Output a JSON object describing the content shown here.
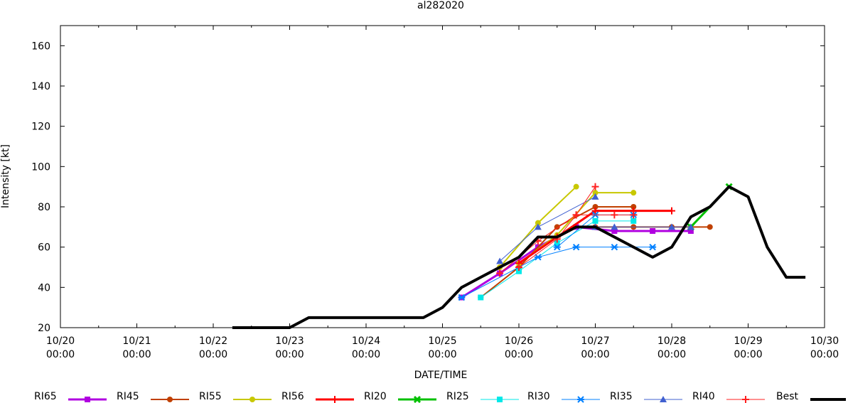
{
  "chart_data": {
    "type": "line",
    "title": "al282020",
    "xlabel": "DATE/TIME",
    "ylabel": "Intensity [kt]",
    "xlim": [
      "10/20 00:00",
      "10/30 00:00"
    ],
    "ylim": [
      20,
      170
    ],
    "y_ticks": [
      20,
      40,
      60,
      80,
      100,
      120,
      140,
      160
    ],
    "x_ticks": [
      {
        "date": "10/20",
        "time": "00:00"
      },
      {
        "date": "10/21",
        "time": "00:00"
      },
      {
        "date": "10/22",
        "time": "00:00"
      },
      {
        "date": "10/23",
        "time": "00:00"
      },
      {
        "date": "10/24",
        "time": "00:00"
      },
      {
        "date": "10/25",
        "time": "00:00"
      },
      {
        "date": "10/26",
        "time": "00:00"
      },
      {
        "date": "10/27",
        "time": "00:00"
      },
      {
        "date": "10/28",
        "time": "00:00"
      },
      {
        "date": "10/29",
        "time": "00:00"
      },
      {
        "date": "10/30",
        "time": "00:00"
      }
    ],
    "grid": false,
    "legend_position": "bottom",
    "series": [
      {
        "name": "RI65",
        "color": "#b000e0",
        "marker": "square",
        "width": 3,
        "tracks": [
          {
            "x": [
              "10/25 06:00",
              "10/25 18:00",
              "10/26 06:00",
              "10/26 18:00",
              "10/27 06:00",
              "10/27 18:00",
              "10/28 06:00"
            ],
            "y": [
              35,
              47,
              60,
              70,
              68,
              68,
              68
            ]
          }
        ]
      },
      {
        "name": "RI45",
        "color": "#c04000",
        "marker": "circle",
        "width": 2,
        "tracks": [
          {
            "x": [
              "10/25 12:00",
              "10/26 00:00",
              "10/26 12:00",
              "10/27 00:00",
              "10/27 12:00"
            ],
            "y": [
              35,
              50,
              70,
              80,
              80
            ]
          },
          {
            "x": [
              "10/27 00:00",
              "10/27 12:00",
              "10/28 00:00",
              "10/28 12:00"
            ],
            "y": [
              70,
              70,
              70,
              70
            ]
          }
        ]
      },
      {
        "name": "RI55",
        "color": "#c8c800",
        "marker": "circle",
        "width": 2,
        "tracks": [
          {
            "x": [
              "10/25 18:00",
              "10/26 06:00",
              "10/26 18:00"
            ],
            "y": [
              50,
              72,
              90
            ]
          },
          {
            "x": [
              "10/26 00:00",
              "10/26 12:00",
              "10/27 00:00",
              "10/27 12:00"
            ],
            "y": [
              52,
              66,
              87,
              87
            ]
          }
        ]
      },
      {
        "name": "RI56",
        "color": "#ff0000",
        "marker": "plus",
        "width": 3,
        "tracks": [
          {
            "x": [
              "10/26 00:00",
              "10/26 12:00",
              "10/27 00:00",
              "10/27 12:00",
              "10/28 00:00"
            ],
            "y": [
              52,
              65,
              78,
              78,
              78
            ]
          }
        ]
      },
      {
        "name": "RI20",
        "color": "#00c000",
        "marker": "cross",
        "width": 3,
        "tracks": [
          {
            "x": [
              "10/28 06:00",
              "10/28 18:00"
            ],
            "y": [
              70,
              90
            ]
          }
        ]
      },
      {
        "name": "RI25",
        "color": "#00e8e8",
        "marker": "square",
        "width": 1,
        "tracks": [
          {
            "x": [
              "10/25 12:00",
              "10/26 00:00",
              "10/26 12:00",
              "10/27 00:00",
              "10/27 12:00"
            ],
            "y": [
              35,
              48,
              62,
              73,
              73
            ]
          }
        ]
      },
      {
        "name": "RI30",
        "color": "#0080ff",
        "marker": "star",
        "width": 1,
        "tracks": [
          {
            "x": [
              "10/25 06:00",
              "10/26 06:00",
              "10/26 18:00",
              "10/27 06:00",
              "10/27 18:00"
            ],
            "y": [
              35,
              55,
              60,
              60,
              60
            ]
          },
          {
            "x": [
              "10/26 12:00",
              "10/27 00:00",
              "10/27 12:00"
            ],
            "y": [
              60,
              76,
              76
            ]
          }
        ]
      },
      {
        "name": "RI35",
        "color": "#4060d0",
        "marker": "triangle",
        "width": 1,
        "tracks": [
          {
            "x": [
              "10/25 18:00",
              "10/26 06:00",
              "10/27 00:00"
            ],
            "y": [
              53,
              70,
              85
            ]
          },
          {
            "x": [
              "10/27 00:00",
              "10/27 06:00",
              "10/28 00:00",
              "10/28 06:00"
            ],
            "y": [
              70,
              70,
              70,
              70
            ]
          }
        ]
      },
      {
        "name": "RI40",
        "color": "#ff2020",
        "marker": "plus",
        "width": 1,
        "tracks": [
          {
            "x": [
              "10/25 18:00",
              "10/26 06:00",
              "10/26 18:00",
              "10/27 00:00"
            ],
            "y": [
              47,
              63,
              76,
              90
            ]
          },
          {
            "x": [
              "10/26 00:00",
              "10/26 12:00",
              "10/26 18:00",
              "10/27 06:00",
              "10/27 12:00"
            ],
            "y": [
              50,
              64,
              76,
              76,
              76
            ]
          }
        ]
      },
      {
        "name": "Best",
        "color": "#000000",
        "marker": "none",
        "width": 4,
        "tracks": [
          {
            "x": [
              "10/22 06:00",
              "10/22 12:00",
              "10/22 18:00",
              "10/23 00:00",
              "10/23 06:00",
              "10/23 12:00",
              "10/23 18:00",
              "10/24 00:00",
              "10/24 06:00",
              "10/24 12:00",
              "10/24 18:00",
              "10/25 00:00",
              "10/25 06:00",
              "10/25 12:00",
              "10/25 18:00",
              "10/26 00:00",
              "10/26 06:00",
              "10/26 12:00",
              "10/26 18:00",
              "10/27 00:00",
              "10/27 06:00",
              "10/27 12:00",
              "10/27 18:00",
              "10/28 00:00",
              "10/28 06:00",
              "10/28 12:00",
              "10/28 18:00",
              "10/29 00:00",
              "10/29 06:00",
              "10/29 12:00",
              "10/29 18:00"
            ],
            "y": [
              20,
              20,
              20,
              20,
              25,
              25,
              25,
              25,
              25,
              25,
              25,
              30,
              40,
              45,
              50,
              55,
              65,
              65,
              70,
              70,
              65,
              60,
              55,
              60,
              75,
              80,
              90,
              85,
              60,
              45,
              45
            ]
          }
        ]
      }
    ]
  }
}
